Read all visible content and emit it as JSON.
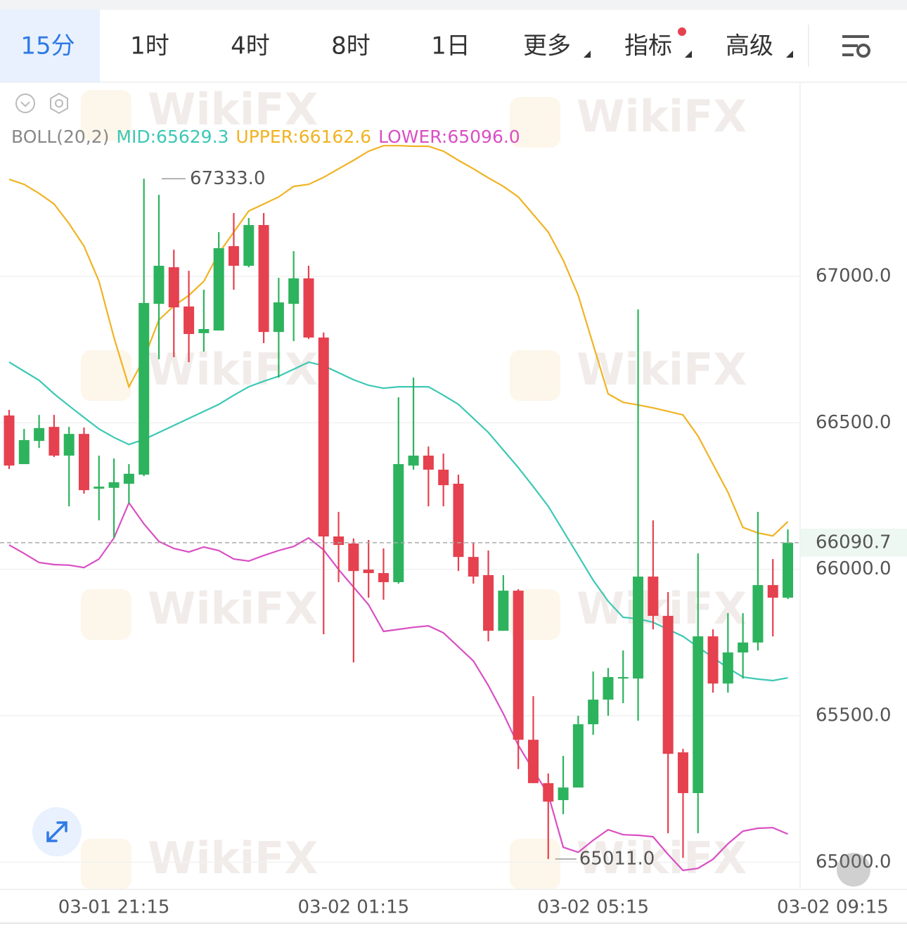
{
  "tabs": {
    "items": [
      "15分",
      "1时",
      "4时",
      "8时",
      "1日",
      "更多",
      "指标",
      "高级"
    ],
    "active": 0
  },
  "watermark": "WikiFX",
  "chart_data": {
    "type": "candlestick",
    "indicator": "BOLL(20,2)",
    "up_color": "#2db35d",
    "down_color": "#e5414f",
    "candles": {
      "open": [
        66525,
        66359,
        66438,
        66486,
        66388,
        66462,
        66275,
        66278,
        66292,
        66323,
        66906,
        67031,
        66897,
        66806,
        66815,
        67103,
        67036,
        67175,
        66810,
        66906,
        66993,
        66791,
        66112,
        66088,
        65999,
        65987,
        65956,
        66354,
        66388,
        66340,
        66292,
        66042,
        65980,
        65790,
        65927,
        65418,
        65270,
        65212,
        65255,
        65471,
        65555,
        65627,
        65627,
        65975,
        65841,
        65375,
        65236,
        65771,
        65610,
        65716,
        65750,
        65946,
        65903
      ],
      "high": [
        66544,
        66479,
        66527,
        66527,
        66486,
        66484,
        66388,
        66378,
        66359,
        67333,
        67278,
        67091,
        67019,
        66954,
        67151,
        67216,
        67199,
        67216,
        66995,
        67086,
        67036,
        66808,
        66196,
        66105,
        66100,
        66071,
        66587,
        66654,
        66419,
        66395,
        66323,
        66090,
        66064,
        65980,
        65932,
        65567,
        65303,
        65363,
        65500,
        65651,
        65663,
        65723,
        66887,
        66167,
        65922,
        65387,
        66054,
        65795,
        65850,
        65850,
        66196,
        66035,
        66136
      ],
      "low": [
        66342,
        66359,
        66414,
        66383,
        66215,
        66258,
        66167,
        66107,
        66225,
        66318,
        66717,
        66724,
        66707,
        66743,
        66815,
        66954,
        67031,
        66772,
        66654,
        66779,
        66786,
        65778,
        65956,
        65682,
        65903,
        65896,
        65951,
        66340,
        66215,
        66215,
        65994,
        65951,
        65754,
        65790,
        65318,
        65270,
        65011,
        65164,
        65255,
        65435,
        65500,
        65543,
        65483,
        65795,
        65099,
        65015,
        65099,
        65579,
        65579,
        65627,
        65723,
        65771,
        65898
      ],
      "close": [
        66354,
        66441,
        66482,
        66388,
        66462,
        66270,
        66282,
        66297,
        66326,
        66909,
        67036,
        66894,
        66803,
        66820,
        67096,
        67036,
        67175,
        66810,
        66911,
        66993,
        66791,
        66112,
        66083,
        65994,
        65987,
        65956,
        66359,
        66388,
        66340,
        66287,
        66042,
        65975,
        65790,
        65927,
        65418,
        65270,
        65207,
        65255,
        65471,
        65555,
        65632,
        65632,
        65975,
        65841,
        65370,
        65236,
        65771,
        65610,
        65716,
        65750,
        65946,
        65903,
        66090.7
      ]
    },
    "series": [
      {
        "name": "MID:65629.3",
        "color": "#3cc8b4",
        "values": [
          66707,
          66676,
          66645,
          66599,
          66558,
          66518,
          66479,
          66450,
          66426,
          66443,
          66467,
          66491,
          66515,
          66539,
          66563,
          66594,
          66623,
          66642,
          66659,
          66683,
          66707,
          66695,
          66671,
          66647,
          66628,
          66618,
          66623,
          66623,
          66623,
          66594,
          66563,
          66515,
          66467,
          66407,
          66347,
          66282,
          66215,
          66131,
          66047,
          65963,
          65891,
          65836,
          65831,
          65819,
          65795,
          65771,
          65735,
          65699,
          65663,
          65632,
          65625,
          65620,
          65629.3
        ]
      },
      {
        "name": "UPPER:66162.6",
        "color": "#f0b323",
        "values": [
          67331,
          67314,
          67283,
          67247,
          67180,
          67103,
          66983,
          66791,
          66623,
          66719,
          66851,
          66899,
          66935,
          66983,
          67079,
          67151,
          67223,
          67247,
          67271,
          67307,
          67314,
          67338,
          67367,
          67396,
          67427,
          67446,
          67446,
          67444,
          67444,
          67427,
          67396,
          67367,
          67336,
          67307,
          67271,
          67211,
          67151,
          67055,
          66935,
          66767,
          66599,
          66570,
          66561,
          66551,
          66539,
          66527,
          66455,
          66359,
          66263,
          66143,
          66124,
          66114,
          66162.6
        ]
      },
      {
        "name": "LOWER:65096.0",
        "color": "#d94fc4",
        "values": [
          66083,
          66054,
          66023,
          66016,
          66014,
          66006,
          66035,
          66107,
          66227,
          66155,
          66095,
          66071,
          66059,
          66076,
          66064,
          66035,
          66028,
          66047,
          66064,
          66078,
          66107,
          66066,
          65999,
          65939,
          65879,
          65788,
          65795,
          65802,
          65807,
          65783,
          65735,
          65687,
          65603,
          65507,
          65399,
          65315,
          65231,
          65051,
          65034,
          65075,
          65111,
          65094,
          65092,
          65087,
          65027,
          64972,
          64979,
          65010,
          65063,
          65106,
          65116,
          65118,
          65096
        ]
      }
    ],
    "annotations": [
      {
        "index": 10,
        "value": 67333,
        "label": "67333.0"
      },
      {
        "index": 36,
        "value": 65011,
        "label": "65011.0"
      }
    ],
    "last_price": 66090.7,
    "last_price_color": "#2db35d",
    "ylim": [
      64907.2,
      67660
    ],
    "yticks": [
      {
        "value": 65000,
        "label": "65000.0"
      },
      {
        "value": 65500,
        "label": "65500.0"
      },
      {
        "value": 66000,
        "label": "66000.0"
      },
      {
        "value": 66500,
        "label": "66500.0"
      },
      {
        "value": 67000,
        "label": "67000.0"
      }
    ],
    "xlim": [
      -0.61,
      52.82
    ],
    "xticks": [
      {
        "value": 7,
        "label": "03-01 21:15"
      },
      {
        "value": 23,
        "label": "03-02 01:15"
      },
      {
        "value": 39,
        "label": "03-02 05:15"
      },
      {
        "value": 55,
        "label": "03-02 09:15"
      }
    ],
    "grid": true
  }
}
